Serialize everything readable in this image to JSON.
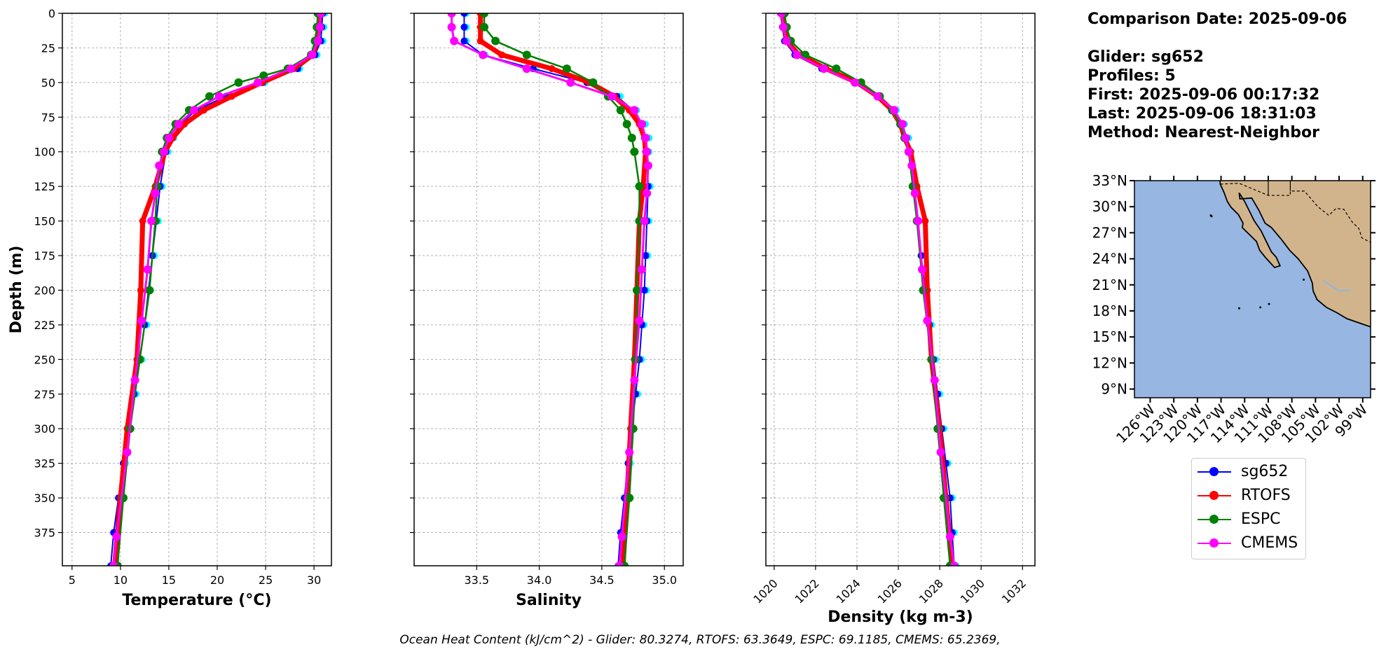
{
  "info": {
    "comparison_date": "Comparison Date: 2025-09-06",
    "glider": "Glider: sg652",
    "profiles": "Profiles: 5",
    "first": "First: 2025-09-06 00:17:32",
    "last": "Last: 2025-09-06 18:31:03",
    "method": "Method: Nearest-Neighbor"
  },
  "footer": "Ocean Heat Content (kJ/cm^2) - Glider: 80.3274,  RTOFS: 63.3649,  ESPC: 69.1185,  CMEMS: 65.2369,",
  "colors": {
    "sg652": "#0000ff",
    "sg652_raw": "#00ffff",
    "RTOFS": "#ff0000",
    "ESPC": "#008000",
    "CMEMS": "#ff00ff",
    "ocean": "#97b6e1",
    "land": "#d2b48c",
    "grid": "#b0b0b0"
  },
  "legend": [
    "sg652",
    "RTOFS",
    "ESPC",
    "CMEMS"
  ],
  "chart_data": [
    {
      "type": "line",
      "xlabel": "Temperature (°C)",
      "ylabel": "Depth (m)",
      "xlim": [
        4,
        31.8
      ],
      "ylim": [
        399,
        0
      ],
      "xticks": [
        5,
        10,
        15,
        20,
        25,
        30
      ],
      "yticks": [
        0,
        25,
        50,
        75,
        100,
        125,
        150,
        175,
        200,
        225,
        250,
        275,
        300,
        325,
        350,
        375
      ],
      "grid": true,
      "series": [
        {
          "name": "sg652",
          "depth": [
            0,
            10,
            20,
            30,
            40,
            50,
            60,
            70,
            80,
            90,
            100,
            125,
            150,
            175,
            200,
            225,
            250,
            275,
            300,
            325,
            350,
            375,
            399
          ],
          "values": [
            30.9,
            30.8,
            30.7,
            30.1,
            28.3,
            24.7,
            20.9,
            17.8,
            16.2,
            15.3,
            14.7,
            14.1,
            13.7,
            13.3,
            12.9,
            12.5,
            12.0,
            11.4,
            10.8,
            10.3,
            9.8,
            9.3,
            9.0
          ]
        },
        {
          "name": "RTOFS",
          "depth": [
            0,
            10,
            20,
            30,
            40,
            50,
            60,
            70,
            80,
            90,
            100,
            125,
            150,
            200,
            250,
            300,
            350,
            399
          ],
          "values": [
            30.6,
            30.5,
            30.3,
            29.9,
            27.9,
            24.6,
            21.5,
            18.6,
            16.6,
            15.4,
            14.6,
            13.6,
            12.3,
            12.1,
            11.7,
            10.7,
            10.0,
            9.4
          ]
        },
        {
          "name": "ESPC",
          "depth": [
            0,
            10,
            20,
            30,
            40,
            45,
            50,
            60,
            70,
            80,
            90,
            100,
            125,
            150,
            200,
            250,
            300,
            350,
            399
          ],
          "values": [
            30.4,
            30.3,
            30.1,
            29.7,
            27.3,
            24.8,
            22.2,
            19.2,
            17.1,
            15.7,
            14.8,
            14.3,
            13.8,
            13.6,
            13.0,
            12.0,
            11.0,
            10.3,
            9.7
          ]
        },
        {
          "name": "CMEMS",
          "depth": [
            0,
            10,
            20,
            30,
            40,
            50,
            60,
            70,
            80,
            90,
            100,
            110,
            130,
            150,
            185,
            222,
            265,
            317,
            378,
            399
          ],
          "values": [
            30.7,
            30.6,
            30.4,
            29.8,
            27.6,
            24.2,
            20.2,
            17.6,
            16.0,
            15.0,
            14.5,
            14.0,
            13.6,
            13.2,
            12.8,
            12.2,
            11.5,
            10.7,
            9.6,
            9.3
          ]
        }
      ]
    },
    {
      "type": "line",
      "xlabel": "Salinity",
      "xlim": [
        33.0,
        35.15
      ],
      "ylim": [
        399,
        0
      ],
      "xticks": [
        33.5,
        34.0,
        34.5,
        35.0
      ],
      "xtick_labels": [
        "33.5",
        "34.0",
        "34.5",
        "35.0"
      ],
      "grid": true,
      "series": [
        {
          "name": "sg652",
          "depth": [
            0,
            10,
            20,
            30,
            40,
            50,
            60,
            70,
            80,
            90,
            100,
            125,
            150,
            175,
            200,
            225,
            250,
            275,
            300,
            325,
            350,
            375,
            399
          ],
          "values": [
            33.4,
            33.4,
            33.4,
            33.55,
            33.95,
            34.38,
            34.62,
            34.75,
            34.82,
            34.85,
            34.86,
            34.87,
            34.86,
            34.85,
            34.84,
            34.82,
            34.8,
            34.77,
            34.74,
            34.71,
            34.68,
            34.65,
            34.63
          ]
        },
        {
          "name": "RTOFS",
          "depth": [
            0,
            10,
            20,
            30,
            40,
            50,
            60,
            70,
            80,
            90,
            100,
            125,
            150,
            200,
            250,
            300,
            350,
            399
          ],
          "values": [
            33.53,
            33.53,
            33.53,
            33.7,
            34.1,
            34.4,
            34.6,
            34.72,
            34.8,
            34.84,
            34.85,
            34.83,
            34.8,
            34.78,
            34.76,
            34.73,
            34.7,
            34.67
          ]
        },
        {
          "name": "ESPC",
          "depth": [
            0,
            10,
            20,
            30,
            40,
            50,
            60,
            70,
            80,
            90,
            100,
            125,
            150,
            200,
            250,
            300,
            350,
            399
          ],
          "values": [
            33.56,
            33.56,
            33.65,
            33.9,
            34.22,
            34.43,
            34.55,
            34.65,
            34.7,
            34.74,
            34.76,
            34.8,
            34.8,
            34.78,
            34.77,
            34.75,
            34.72,
            34.68
          ]
        },
        {
          "name": "CMEMS",
          "depth": [
            0,
            10,
            20,
            30,
            40,
            50,
            60,
            70,
            80,
            90,
            100,
            110,
            130,
            150,
            185,
            222,
            265,
            317,
            378,
            399
          ],
          "values": [
            33.3,
            33.3,
            33.32,
            33.55,
            33.9,
            34.25,
            34.58,
            34.76,
            34.82,
            34.85,
            34.86,
            34.87,
            34.86,
            34.84,
            34.82,
            34.8,
            34.76,
            34.72,
            34.66,
            34.64
          ]
        }
      ]
    },
    {
      "type": "line",
      "xlabel": "Density (kg m-3)",
      "xlim": [
        1019.6,
        1032.6
      ],
      "ylim": [
        399,
        0
      ],
      "xticks": [
        1020,
        1022,
        1024,
        1026,
        1028,
        1030,
        1032
      ],
      "grid": true,
      "series": [
        {
          "name": "sg652",
          "depth": [
            0,
            10,
            20,
            30,
            40,
            50,
            60,
            70,
            80,
            90,
            100,
            125,
            150,
            175,
            200,
            225,
            250,
            275,
            300,
            325,
            350,
            375,
            399
          ],
          "values": [
            1020.3,
            1020.4,
            1020.5,
            1021.0,
            1022.3,
            1023.9,
            1025.0,
            1025.8,
            1026.2,
            1026.4,
            1026.5,
            1026.7,
            1026.9,
            1027.1,
            1027.3,
            1027.5,
            1027.7,
            1027.9,
            1028.1,
            1028.3,
            1028.5,
            1028.6,
            1028.7
          ]
        },
        {
          "name": "RTOFS",
          "depth": [
            0,
            10,
            20,
            30,
            40,
            50,
            60,
            70,
            80,
            90,
            100,
            125,
            150,
            200,
            250,
            300,
            350,
            399
          ],
          "values": [
            1020.4,
            1020.5,
            1020.6,
            1021.2,
            1022.5,
            1024.0,
            1025.0,
            1025.7,
            1026.1,
            1026.3,
            1026.6,
            1026.9,
            1027.3,
            1027.4,
            1027.6,
            1028.0,
            1028.3,
            1028.6
          ]
        },
        {
          "name": "ESPC",
          "depth": [
            0,
            10,
            20,
            30,
            40,
            50,
            60,
            70,
            80,
            90,
            100,
            125,
            150,
            200,
            250,
            300,
            350,
            399
          ],
          "values": [
            1020.5,
            1020.6,
            1020.8,
            1021.5,
            1023.0,
            1024.2,
            1025.1,
            1025.7,
            1026.1,
            1026.3,
            1026.5,
            1026.7,
            1026.9,
            1027.2,
            1027.6,
            1027.9,
            1028.2,
            1028.5
          ]
        },
        {
          "name": "CMEMS",
          "depth": [
            0,
            10,
            20,
            30,
            40,
            50,
            60,
            70,
            80,
            90,
            100,
            110,
            130,
            150,
            185,
            222,
            265,
            317,
            378,
            399
          ],
          "values": [
            1020.35,
            1020.45,
            1020.6,
            1021.1,
            1022.4,
            1023.9,
            1025.0,
            1025.8,
            1026.2,
            1026.35,
            1026.5,
            1026.65,
            1026.8,
            1026.95,
            1027.15,
            1027.4,
            1027.75,
            1028.05,
            1028.5,
            1028.7
          ]
        }
      ]
    }
  ],
  "map": {
    "lon_range": [
      -128,
      -98
    ],
    "lat_range": [
      8,
      33
    ],
    "lon_ticks": [
      -126,
      -123,
      -120,
      -117,
      -114,
      -111,
      -108,
      -105,
      -102,
      -99
    ],
    "lon_labels": [
      "126°W",
      "123°W",
      "120°W",
      "117°W",
      "114°W",
      "111°W",
      "108°W",
      "105°W",
      "102°W",
      "99°W"
    ],
    "lat_ticks": [
      9,
      12,
      15,
      18,
      21,
      24,
      27,
      30,
      33
    ],
    "lat_labels": [
      "9°N",
      "12°N",
      "15°N",
      "18°N",
      "21°N",
      "24°N",
      "27°N",
      "30°N",
      "33°N"
    ]
  }
}
